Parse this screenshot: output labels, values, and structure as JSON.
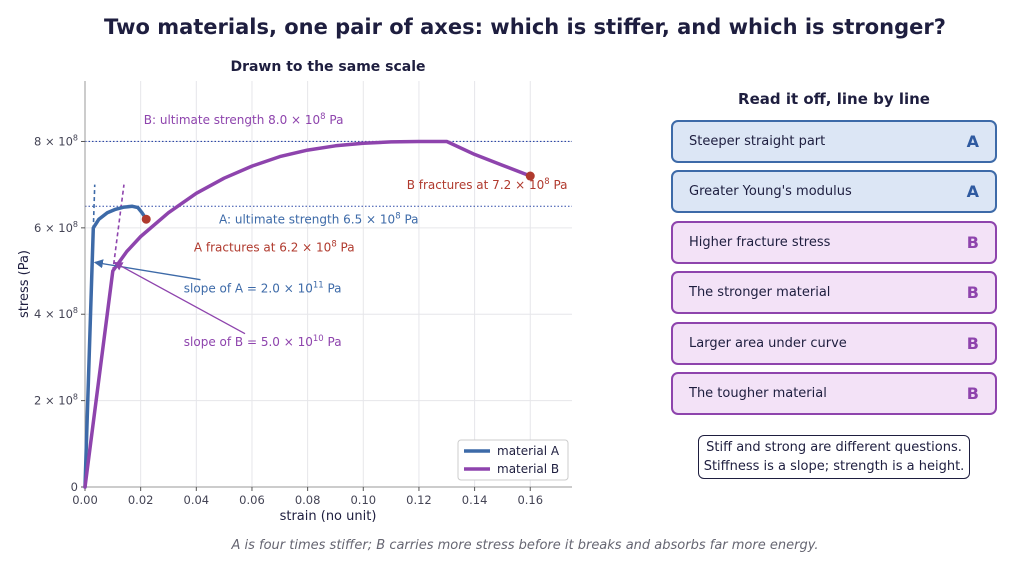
{
  "page": {
    "title": "Two materials, one pair of axes: which is stiffer, and which is stronger?",
    "footer": "A is four times stiffer; B carries more stress before it breaks and absorbs far more energy."
  },
  "chart_data": {
    "type": "line",
    "title": "Drawn to the same scale",
    "xlabel": "strain  (no unit)",
    "ylabel": "stress  (Pa)",
    "xlim": [
      0,
      0.175
    ],
    "ylim": [
      0,
      940000000.0
    ],
    "x_ticks": [
      0,
      0.02,
      0.04,
      0.06,
      0.08,
      0.1,
      0.12,
      0.14,
      0.16
    ],
    "x_tick_labels": [
      "0.00",
      "0.02",
      "0.04",
      "0.06",
      "0.08",
      "0.10",
      "0.12",
      "0.14",
      "0.16"
    ],
    "y_ticks": [
      0,
      200000000.0,
      400000000.0,
      600000000.0,
      800000000.0
    ],
    "y_tick_labels": [
      {
        "base": "0",
        "exp": ""
      },
      {
        "base": "2 × 10",
        "exp": "8"
      },
      {
        "base": "4 × 10",
        "exp": "8"
      },
      {
        "base": "6 × 10",
        "exp": "8"
      },
      {
        "base": "8 × 10",
        "exp": "8"
      }
    ],
    "grid": true,
    "legend_position": "bottom-right",
    "series": [
      {
        "name": "material A",
        "color": "#3d6aa8",
        "x": [
          0,
          0.003,
          0.005,
          0.008,
          0.011,
          0.014,
          0.017,
          0.019,
          0.0205,
          0.022
        ],
        "y": [
          0,
          600000000.0,
          620000000.0,
          635000000.0,
          643000000.0,
          648000000.0,
          650000000.0,
          647000000.0,
          635000000.0,
          620000000.0
        ]
      },
      {
        "name": "material B",
        "color": "#8e44ad",
        "x": [
          0,
          0.01,
          0.015,
          0.02,
          0.03,
          0.04,
          0.05,
          0.06,
          0.07,
          0.08,
          0.09,
          0.1,
          0.11,
          0.12,
          0.13,
          0.14,
          0.15,
          0.16
        ],
        "y": [
          0,
          500000000.0,
          545000000.0,
          580000000.0,
          635000000.0,
          680000000.0,
          715000000.0,
          743000000.0,
          765000000.0,
          780000000.0,
          790000000.0,
          796000000.0,
          799000000.0,
          800000000.0,
          800000000.0,
          770000000.0,
          745000000.0,
          720000000.0
        ]
      }
    ],
    "fracture_points": [
      {
        "series": "material A",
        "x": 0.022,
        "y": 620000000.0,
        "color": "#b03a2e"
      },
      {
        "series": "material B",
        "x": 0.16,
        "y": 720000000.0,
        "color": "#b03a2e"
      }
    ],
    "reference_lines": [
      {
        "y": 800000000.0,
        "color": "#2f4aa8"
      },
      {
        "y": 650000000.0,
        "color": "#2f4aa8"
      }
    ],
    "tangent_lines": [
      {
        "color": "#3d6aa8",
        "x": [
          0.0025,
          0.0035
        ],
        "y": [
          500000000.0,
          700000000.0
        ]
      },
      {
        "color": "#8e44ad",
        "x": [
          0.01,
          0.014
        ],
        "y": [
          500000000.0,
          700000000.0
        ]
      }
    ],
    "annotations": [
      {
        "parts": [
          {
            "t": "B: ultimate strength 8.0 × 10"
          },
          {
            "t": "8",
            "sup": true
          },
          {
            "t": " Pa"
          }
        ],
        "color": "#8e44ad",
        "x": 0.057,
        "y": 840000000.0,
        "anchor": "middle"
      },
      {
        "parts": [
          {
            "t": "A: ultimate strength 6.5 × 10"
          },
          {
            "t": "8",
            "sup": true
          },
          {
            "t": " Pa"
          }
        ],
        "color": "#3d6aa8",
        "x": 0.084,
        "y": 610000000.0,
        "anchor": "middle"
      },
      {
        "parts": [
          {
            "t": "B fractures at 7.2 × 10"
          },
          {
            "t": "8",
            "sup": true
          },
          {
            "t": " Pa"
          }
        ],
        "color": "#b03a2e",
        "x": 0.1445,
        "y": 690000000.0,
        "anchor": "middle"
      },
      {
        "parts": [
          {
            "t": "A fractures at 6.2 × 10"
          },
          {
            "t": "8",
            "sup": true
          },
          {
            "t": " Pa"
          }
        ],
        "color": "#b03a2e",
        "x": 0.068,
        "y": 545000000.0,
        "anchor": "middle"
      },
      {
        "parts": [
          {
            "t": "slope of A  = 2.0 × 10"
          },
          {
            "t": "11",
            "sup": true
          },
          {
            "t": " Pa"
          }
        ],
        "color": "#3d6aa8",
        "x": 0.0355,
        "y": 450000000.0,
        "anchor": "start"
      },
      {
        "parts": [
          {
            "t": "slope of B  = 5.0 × 10"
          },
          {
            "t": "10",
            "sup": true
          },
          {
            "t": " Pa"
          }
        ],
        "color": "#8e44ad",
        "x": 0.0355,
        "y": 327000000.0,
        "anchor": "start"
      }
    ],
    "arrows": [
      {
        "color": "#3d6aa8",
        "from": [
          0.0415,
          480000000.0
        ],
        "to": [
          0.0035,
          520000000.0
        ]
      },
      {
        "color": "#8e44ad",
        "from": [
          0.0575,
          355000000.0
        ],
        "to": [
          0.0105,
          520000000.0
        ]
      }
    ]
  },
  "panel": {
    "title": "Read it off, line by line",
    "rows": [
      {
        "label": "Steeper straight part",
        "answer": "A"
      },
      {
        "label": "Greater Young's modulus",
        "answer": "A"
      },
      {
        "label": "Higher fracture stress",
        "answer": "B"
      },
      {
        "label": "The stronger material",
        "answer": "B"
      },
      {
        "label": "Larger area under curve",
        "answer": "B"
      },
      {
        "label": "The tougher material",
        "answer": "B"
      }
    ],
    "note_line1": "Stiff and strong are different questions.",
    "note_line2": "Stiffness is a slope; strength is a height."
  }
}
